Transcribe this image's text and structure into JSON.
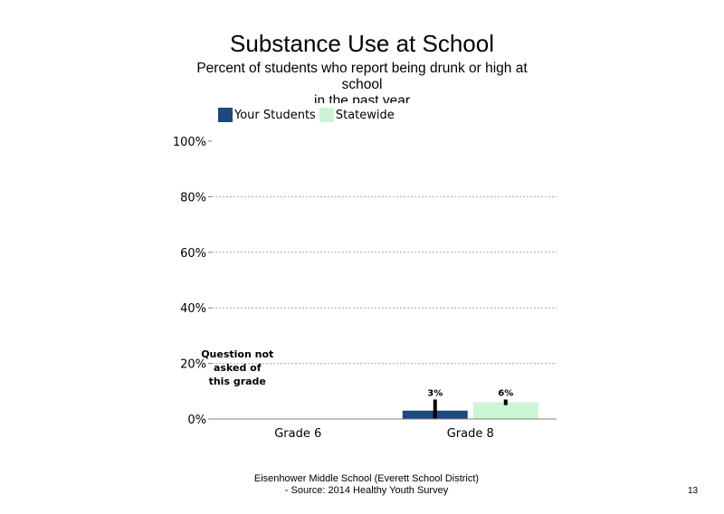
{
  "chart_data": {
    "type": "bar",
    "title": "Substance Use at School",
    "subtitle_lines": [
      "Percent of students  who report being drunk or high at",
      "school",
      "in the past year"
    ],
    "categories": [
      "Grade 6",
      "Grade 8"
    ],
    "series": [
      {
        "name": "Your Students",
        "color": "#1f497d",
        "values": [
          null,
          3
        ],
        "error_high": [
          null,
          7
        ],
        "error_low": [
          null,
          0
        ]
      },
      {
        "name": "Statewide",
        "color": "#ccf5d6",
        "values": [
          null,
          6
        ],
        "error_high": [
          null,
          7
        ],
        "error_low": [
          null,
          5
        ]
      }
    ],
    "data_labels": [
      null,
      [
        "3%",
        "6%"
      ]
    ],
    "ylim": [
      0,
      100
    ],
    "yticks": [
      "0%",
      "20%",
      "40%",
      "60%",
      "80%",
      "100%"
    ],
    "grid": true,
    "legend_position": "top-left",
    "annotations": [
      {
        "category": "Grade 6",
        "text_lines": [
          "Question not",
          "asked of",
          "this grade"
        ]
      }
    ]
  },
  "footer": {
    "line1": "Eisenhower Middle School (Everett School District)",
    "line2": "- Source: 2014 Healthy  Youth Survey"
  },
  "page_number": "13"
}
